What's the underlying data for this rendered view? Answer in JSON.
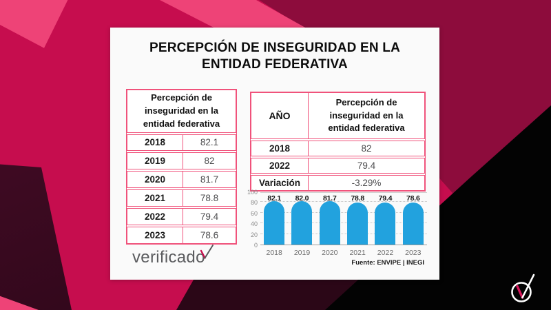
{
  "title": {
    "line1": "PERCEPCIÓN DE INSEGURIDAD EN LA",
    "line2": "ENTIDAD FEDERATIVA"
  },
  "left_table": {
    "header": "Percepción de inseguridad en la entidad federativa",
    "rows": [
      {
        "year": "2018",
        "value": "82.1"
      },
      {
        "year": "2019",
        "value": "82"
      },
      {
        "year": "2020",
        "value": "81.7"
      },
      {
        "year": "2021",
        "value": "78.8"
      },
      {
        "year": "2022",
        "value": "79.4"
      },
      {
        "year": "2023",
        "value": "78.6"
      }
    ]
  },
  "right_table": {
    "col1_header": "AÑO",
    "col2_header": "Percepción de inseguridad en la entidad federativa",
    "rows": [
      {
        "label": "2018",
        "value": "82"
      },
      {
        "label": "2022",
        "value": "79.4"
      },
      {
        "label": "Variación",
        "value": "-3.29%"
      }
    ]
  },
  "chart_data": {
    "type": "bar",
    "title": "",
    "categories": [
      "2018",
      "2019",
      "2020",
      "2021",
      "2022",
      "2023"
    ],
    "values": [
      82.1,
      82.0,
      81.7,
      78.8,
      79.4,
      78.6
    ],
    "data_labels": [
      "82.1",
      "82.0",
      "81.7",
      "78.8",
      "79.4",
      "78.6"
    ],
    "xlabel": "",
    "ylabel": "",
    "ylim": [
      0,
      100
    ],
    "yticks": [
      0,
      20,
      40,
      60,
      80,
      100
    ],
    "grid": "horizontal-dotted",
    "legend": "none",
    "bar_color": "#22A2DE"
  },
  "footer": {
    "source": "Fuente: ENVIPE | INEGI",
    "brand": "verificado"
  },
  "colors": {
    "background_crimson": "#C60D4E",
    "background_light_pink": "#EE4377",
    "background_maroon": "#8D0C3C",
    "background_dark_maroon": "#2B0717",
    "background_black": "#030303",
    "card_background": "#FAFAFA",
    "table_border": "#F0527B",
    "bar_blue": "#22A2DE",
    "text_dark": "#0C0C0C",
    "text_gray": "#4B4B4D"
  }
}
